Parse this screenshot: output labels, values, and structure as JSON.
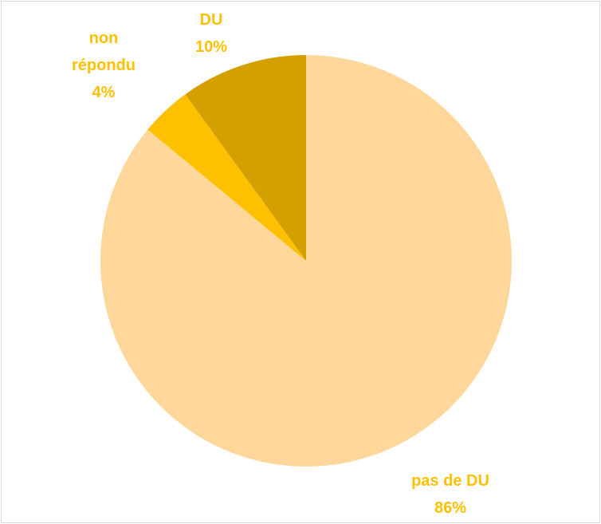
{
  "chart_data": {
    "type": "pie",
    "categories": [
      "pas de DU",
      "non répondu",
      "DU"
    ],
    "values": [
      86,
      4,
      10
    ],
    "value_labels": [
      "86%",
      "4%",
      "10%"
    ],
    "colors": [
      "#FFD79B",
      "#FFC000",
      "#D4A000"
    ],
    "label_color": "#FFC000"
  }
}
